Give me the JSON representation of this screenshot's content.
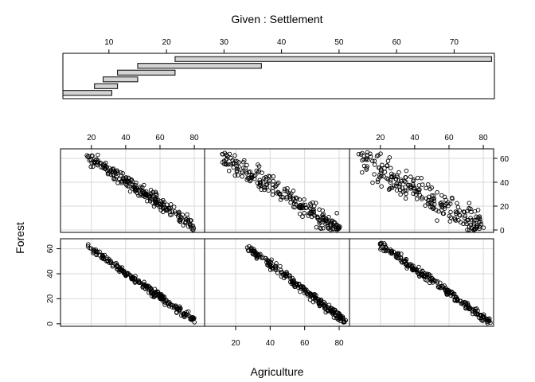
{
  "chart_data": {
    "type": "scatter",
    "layout": "coplot",
    "given_title": "Given : Settlement",
    "xlabel": "Agriculture",
    "ylabel": "Forest",
    "given_axis": {
      "range": [
        2,
        77
      ],
      "ticks": [
        10,
        20,
        30,
        40,
        50,
        60,
        70
      ]
    },
    "x_axis": {
      "range": [
        2,
        86
      ],
      "ticks": [
        20,
        40,
        60,
        80
      ]
    },
    "y_axis": {
      "range": [
        -2,
        68
      ],
      "ticks": [
        0,
        20,
        40,
        60
      ]
    },
    "grid": true,
    "given_intervals": [
      [
        2,
        10.5
      ],
      [
        7.5,
        11.5
      ],
      [
        9,
        15
      ],
      [
        11.5,
        21.5
      ],
      [
        15,
        36.5
      ],
      [
        21.5,
        76.5
      ]
    ],
    "panels": [
      {
        "panel": 1,
        "trend": {
          "x_start": 18,
          "x_end": 80,
          "y_start": 62,
          "y_end": 2
        }
      },
      {
        "panel": 2,
        "trend": {
          "x_start": 26,
          "x_end": 84,
          "y_start": 62,
          "y_end": 2
        }
      },
      {
        "panel": 3,
        "trend": {
          "x_start": 20,
          "x_end": 84,
          "y_start": 64,
          "y_end": 1
        }
      },
      {
        "panel": 4,
        "trend": {
          "x_start": 18,
          "x_end": 80,
          "y_start": 62,
          "y_end": 3
        }
      },
      {
        "panel": 5,
        "trend": {
          "x_start": 12,
          "x_end": 80,
          "y_start": 62,
          "y_end": 0
        }
      },
      {
        "panel": 6,
        "trend": {
          "x_start": 8,
          "x_end": 80,
          "y_start": 60,
          "y_end": 2
        }
      }
    ]
  }
}
